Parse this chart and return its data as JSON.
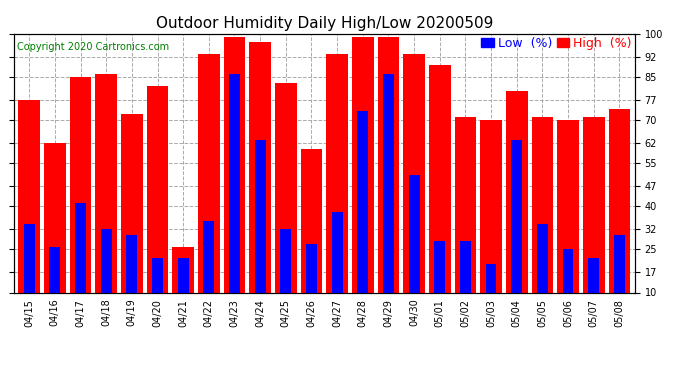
{
  "title": "Outdoor Humidity Daily High/Low 20200509",
  "copyright": "Copyright 2020 Cartronics.com",
  "legend_low": "Low  (%)",
  "legend_high": "High  (%)",
  "categories": [
    "04/15",
    "04/16",
    "04/17",
    "04/18",
    "04/19",
    "04/20",
    "04/21",
    "04/22",
    "04/23",
    "04/24",
    "04/25",
    "04/26",
    "04/27",
    "04/28",
    "04/29",
    "04/30",
    "05/01",
    "05/02",
    "05/03",
    "05/04",
    "05/05",
    "05/06",
    "05/07",
    "05/08"
  ],
  "high_values": [
    77,
    62,
    85,
    86,
    72,
    82,
    26,
    93,
    99,
    97,
    83,
    60,
    93,
    99,
    99,
    93,
    89,
    71,
    70,
    80,
    71,
    70,
    71,
    74
  ],
  "low_values": [
    34,
    26,
    41,
    32,
    30,
    22,
    22,
    35,
    86,
    63,
    32,
    27,
    38,
    73,
    86,
    51,
    28,
    28,
    20,
    63,
    34,
    25,
    22,
    30
  ],
  "bar_color_high": "#ff0000",
  "bar_color_low": "#0000ff",
  "background_color": "#ffffff",
  "grid_color": "#aaaaaa",
  "ylim": [
    10,
    100
  ],
  "yticks": [
    10,
    17,
    25,
    32,
    40,
    47,
    55,
    62,
    70,
    77,
    85,
    92,
    100
  ],
  "title_fontsize": 11,
  "copyright_fontsize": 7,
  "legend_fontsize": 9,
  "tick_fontsize": 7,
  "title_color": "#000000",
  "copyright_color": "#008000",
  "legend_low_color": "#0000ff",
  "legend_high_color": "#ff0000"
}
